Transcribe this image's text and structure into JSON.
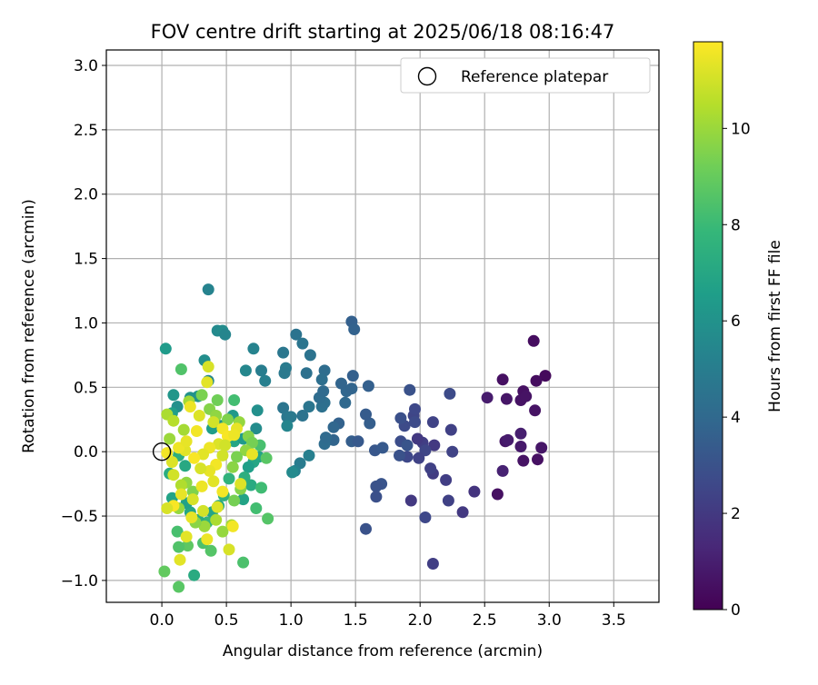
{
  "chart_data": {
    "type": "scatter",
    "title": "FOV centre drift starting at 2025/06/18 08:16:47",
    "xlabel": "Angular distance from reference (arcmin)",
    "ylabel": "Rotation from reference (arcmin)",
    "xlim": [
      -0.43,
      3.85
    ],
    "ylim": [
      -1.17,
      3.12
    ],
    "xticks": [
      0.0,
      0.5,
      1.0,
      1.5,
      2.0,
      2.5,
      3.0,
      3.5
    ],
    "yticks": [
      -1.0,
      -0.5,
      0.0,
      0.5,
      1.0,
      1.5,
      2.0,
      2.5,
      3.0
    ],
    "xtick_labels": [
      "0.0",
      "0.5",
      "1.0",
      "1.5",
      "2.0",
      "2.5",
      "3.0",
      "3.5"
    ],
    "ytick_labels": [
      "−1.0",
      "−0.5",
      "0.0",
      "0.5",
      "1.0",
      "1.5",
      "2.0",
      "2.5",
      "3.0"
    ],
    "grid": true,
    "legend": {
      "placement": "top-right",
      "entries": [
        "Reference platepar"
      ]
    },
    "reference_point": {
      "x": 0.0,
      "y": 0.0,
      "label": "Reference platepar"
    },
    "colorbar": {
      "label": "Hours from first FF file",
      "colormap": "viridis",
      "range": [
        0,
        11.8
      ],
      "ticks": [
        0,
        2,
        4,
        6,
        8,
        10
      ],
      "tick_labels": [
        "0",
        "2",
        "4",
        "6",
        "8",
        "10"
      ]
    },
    "colormap_stops": [
      "#440154",
      "#482878",
      "#3e4989",
      "#31688e",
      "#26828e",
      "#1f9e89",
      "#35b779",
      "#6ece58",
      "#b5de2b",
      "#fde725"
    ],
    "points": [
      {
        "x": 2.88,
        "y": 0.86,
        "t": 0.4
      },
      {
        "x": 2.97,
        "y": 0.59,
        "t": 0.3
      },
      {
        "x": 2.9,
        "y": 0.55,
        "t": 0.4
      },
      {
        "x": 2.64,
        "y": 0.56,
        "t": 0.5
      },
      {
        "x": 2.8,
        "y": 0.47,
        "t": 0.5
      },
      {
        "x": 2.78,
        "y": 0.4,
        "t": 0.6
      },
      {
        "x": 2.82,
        "y": 0.43,
        "t": 0.6
      },
      {
        "x": 2.67,
        "y": 0.41,
        "t": 0.7
      },
      {
        "x": 2.52,
        "y": 0.42,
        "t": 0.9
      },
      {
        "x": 2.89,
        "y": 0.32,
        "t": 0.6
      },
      {
        "x": 2.78,
        "y": 0.14,
        "t": 1.0
      },
      {
        "x": 2.66,
        "y": 0.08,
        "t": 0.7
      },
      {
        "x": 2.68,
        "y": 0.09,
        "t": 0.9
      },
      {
        "x": 2.78,
        "y": 0.04,
        "t": 0.8
      },
      {
        "x": 2.94,
        "y": 0.03,
        "t": 0.7
      },
      {
        "x": 2.8,
        "y": -0.07,
        "t": 0.6
      },
      {
        "x": 2.91,
        "y": -0.06,
        "t": 0.5
      },
      {
        "x": 2.64,
        "y": -0.15,
        "t": 1.1
      },
      {
        "x": 2.6,
        "y": -0.33,
        "t": 0.5
      },
      {
        "x": 2.42,
        "y": -0.31,
        "t": 1.8
      },
      {
        "x": 2.33,
        "y": -0.47,
        "t": 2.0
      },
      {
        "x": 2.22,
        "y": -0.38,
        "t": 2.3
      },
      {
        "x": 2.1,
        "y": -0.87,
        "t": 2.2
      },
      {
        "x": 2.04,
        "y": -0.51,
        "t": 2.6
      },
      {
        "x": 2.2,
        "y": -0.22,
        "t": 2.2
      },
      {
        "x": 2.1,
        "y": -0.17,
        "t": 2.1
      },
      {
        "x": 2.08,
        "y": -0.13,
        "t": 2.3
      },
      {
        "x": 2.25,
        "y": 0.0,
        "t": 2.4
      },
      {
        "x": 2.24,
        "y": 0.17,
        "t": 2.3
      },
      {
        "x": 2.23,
        "y": 0.45,
        "t": 2.7
      },
      {
        "x": 2.1,
        "y": 0.23,
        "t": 2.4
      },
      {
        "x": 2.11,
        "y": 0.05,
        "t": 2.0
      },
      {
        "x": 2.02,
        "y": 0.07,
        "t": 2.2
      },
      {
        "x": 1.98,
        "y": 0.1,
        "t": 2.0
      },
      {
        "x": 2.04,
        "y": 0.01,
        "t": 2.5
      },
      {
        "x": 1.99,
        "y": -0.05,
        "t": 2.4
      },
      {
        "x": 1.93,
        "y": -0.38,
        "t": 2.0
      },
      {
        "x": 1.9,
        "y": -0.04,
        "t": 2.6
      },
      {
        "x": 1.84,
        "y": -0.03,
        "t": 3.0
      },
      {
        "x": 1.85,
        "y": 0.08,
        "t": 2.8
      },
      {
        "x": 1.9,
        "y": 0.05,
        "t": 3.1
      },
      {
        "x": 1.88,
        "y": 0.2,
        "t": 2.7
      },
      {
        "x": 1.85,
        "y": 0.26,
        "t": 2.9
      },
      {
        "x": 1.95,
        "y": 0.28,
        "t": 2.5
      },
      {
        "x": 1.96,
        "y": 0.33,
        "t": 2.6
      },
      {
        "x": 1.92,
        "y": 0.48,
        "t": 3.0
      },
      {
        "x": 1.96,
        "y": 0.23,
        "t": 2.7
      },
      {
        "x": 1.7,
        "y": -0.25,
        "t": 3.1
      },
      {
        "x": 1.66,
        "y": -0.27,
        "t": 3.0
      },
      {
        "x": 1.66,
        "y": -0.35,
        "t": 2.9
      },
      {
        "x": 1.58,
        "y": -0.6,
        "t": 3.0
      },
      {
        "x": 1.65,
        "y": 0.01,
        "t": 3.2
      },
      {
        "x": 1.71,
        "y": 0.03,
        "t": 3.3
      },
      {
        "x": 1.61,
        "y": 0.22,
        "t": 3.5
      },
      {
        "x": 1.58,
        "y": 0.29,
        "t": 3.4
      },
      {
        "x": 1.6,
        "y": 0.51,
        "t": 3.6
      },
      {
        "x": 1.47,
        "y": 1.01,
        "t": 3.6
      },
      {
        "x": 1.49,
        "y": 0.95,
        "t": 3.7
      },
      {
        "x": 1.48,
        "y": 0.59,
        "t": 3.6
      },
      {
        "x": 1.43,
        "y": 0.47,
        "t": 3.9
      },
      {
        "x": 1.39,
        "y": 0.53,
        "t": 3.8
      },
      {
        "x": 1.47,
        "y": 0.49,
        "t": 3.8
      },
      {
        "x": 1.42,
        "y": 0.38,
        "t": 4.0
      },
      {
        "x": 1.37,
        "y": 0.22,
        "t": 3.7
      },
      {
        "x": 1.33,
        "y": 0.19,
        "t": 3.9
      },
      {
        "x": 1.33,
        "y": 0.09,
        "t": 3.8
      },
      {
        "x": 1.47,
        "y": 0.08,
        "t": 3.5
      },
      {
        "x": 1.52,
        "y": 0.08,
        "t": 3.3
      },
      {
        "x": 1.26,
        "y": 0.06,
        "t": 4.2
      },
      {
        "x": 1.27,
        "y": 0.11,
        "t": 4.1
      },
      {
        "x": 1.24,
        "y": 0.35,
        "t": 4.4
      },
      {
        "x": 1.26,
        "y": 0.38,
        "t": 4.3
      },
      {
        "x": 1.22,
        "y": 0.42,
        "t": 4.2
      },
      {
        "x": 1.25,
        "y": 0.47,
        "t": 4.1
      },
      {
        "x": 1.26,
        "y": 0.63,
        "t": 4.2
      },
      {
        "x": 1.24,
        "y": 0.56,
        "t": 4.3
      },
      {
        "x": 1.14,
        "y": 0.35,
        "t": 4.6
      },
      {
        "x": 1.12,
        "y": 0.61,
        "t": 4.4
      },
      {
        "x": 1.15,
        "y": 0.75,
        "t": 4.5
      },
      {
        "x": 1.09,
        "y": 0.84,
        "t": 4.6
      },
      {
        "x": 1.04,
        "y": 0.91,
        "t": 4.5
      },
      {
        "x": 0.94,
        "y": 0.77,
        "t": 4.7
      },
      {
        "x": 0.96,
        "y": 0.65,
        "t": 4.9
      },
      {
        "x": 0.95,
        "y": 0.61,
        "t": 4.8
      },
      {
        "x": 0.94,
        "y": 0.34,
        "t": 4.6
      },
      {
        "x": 0.97,
        "y": 0.27,
        "t": 4.7
      },
      {
        "x": 1.0,
        "y": 0.27,
        "t": 4.8
      },
      {
        "x": 1.09,
        "y": 0.28,
        "t": 4.5
      },
      {
        "x": 0.97,
        "y": 0.2,
        "t": 5.4
      },
      {
        "x": 1.14,
        "y": -0.03,
        "t": 5.1
      },
      {
        "x": 1.07,
        "y": -0.09,
        "t": 4.9
      },
      {
        "x": 1.03,
        "y": -0.15,
        "t": 5.2
      },
      {
        "x": 1.01,
        "y": -0.16,
        "t": 5.6
      },
      {
        "x": 0.8,
        "y": 0.55,
        "t": 5.1
      },
      {
        "x": 0.77,
        "y": 0.63,
        "t": 5.0
      },
      {
        "x": 0.71,
        "y": 0.8,
        "t": 5.3
      },
      {
        "x": 0.65,
        "y": 0.63,
        "t": 5.5
      },
      {
        "x": 0.74,
        "y": 0.32,
        "t": 5.9
      },
      {
        "x": 0.73,
        "y": 0.18,
        "t": 5.7
      },
      {
        "x": 0.36,
        "y": 1.26,
        "t": 5.3
      },
      {
        "x": 0.43,
        "y": 0.94,
        "t": 5.6
      },
      {
        "x": 0.47,
        "y": 0.94,
        "t": 5.7
      },
      {
        "x": 0.49,
        "y": 0.91,
        "t": 5.4
      },
      {
        "x": 0.33,
        "y": 0.71,
        "t": 5.8
      },
      {
        "x": 0.36,
        "y": 0.55,
        "t": 5.5
      },
      {
        "x": 0.28,
        "y": 0.43,
        "t": 6.1
      },
      {
        "x": 0.22,
        "y": 0.42,
        "t": 6.0
      },
      {
        "x": 0.03,
        "y": 0.8,
        "t": 6.4
      },
      {
        "x": 0.09,
        "y": 0.44,
        "t": 6.2
      },
      {
        "x": 0.12,
        "y": 0.35,
        "t": 5.9
      },
      {
        "x": 0.08,
        "y": 0.3,
        "t": 6.6
      },
      {
        "x": 0.55,
        "y": 0.28,
        "t": 6.3
      },
      {
        "x": 0.46,
        "y": 0.2,
        "t": 6.0
      },
      {
        "x": 0.39,
        "y": 0.18,
        "t": 6.5
      },
      {
        "x": 0.52,
        "y": 0.1,
        "t": 6.7
      },
      {
        "x": 0.56,
        "y": 0.08,
        "t": 6.9
      },
      {
        "x": 0.63,
        "y": 0.1,
        "t": 6.4
      },
      {
        "x": 0.75,
        "y": -0.04,
        "t": 6.8
      },
      {
        "x": 0.71,
        "y": -0.08,
        "t": 7.0
      },
      {
        "x": 0.67,
        "y": -0.12,
        "t": 6.6
      },
      {
        "x": 0.64,
        "y": -0.2,
        "t": 7.4
      },
      {
        "x": 0.69,
        "y": -0.26,
        "t": 7.2
      },
      {
        "x": 0.63,
        "y": -0.37,
        "t": 6.8
      },
      {
        "x": 0.52,
        "y": -0.21,
        "t": 7.6
      },
      {
        "x": 0.48,
        "y": -0.34,
        "t": 7.5
      },
      {
        "x": 0.44,
        "y": -0.42,
        "t": 7.1
      },
      {
        "x": 0.39,
        "y": -0.47,
        "t": 6.9
      },
      {
        "x": 0.35,
        "y": -0.55,
        "t": 7.7
      },
      {
        "x": 0.28,
        "y": -0.53,
        "t": 7.3
      },
      {
        "x": 0.22,
        "y": -0.47,
        "t": 7.0
      },
      {
        "x": 0.19,
        "y": -0.4,
        "t": 6.7
      },
      {
        "x": 0.08,
        "y": -0.36,
        "t": 6.8
      },
      {
        "x": 0.06,
        "y": -0.17,
        "t": 7.3
      },
      {
        "x": 0.13,
        "y": -0.03,
        "t": 7.4
      },
      {
        "x": 0.18,
        "y": -0.11,
        "t": 7.1
      },
      {
        "x": 0.25,
        "y": -0.96,
        "t": 7.2
      },
      {
        "x": 0.38,
        "y": -0.77,
        "t": 8.6
      },
      {
        "x": 0.32,
        "y": -0.71,
        "t": 8.4
      },
      {
        "x": 0.2,
        "y": -0.73,
        "t": 8.8
      },
      {
        "x": 0.13,
        "y": -0.74,
        "t": 8.5
      },
      {
        "x": 0.12,
        "y": -0.62,
        "t": 8.3
      },
      {
        "x": 0.02,
        "y": -0.93,
        "t": 8.9
      },
      {
        "x": 0.13,
        "y": -1.05,
        "t": 8.7
      },
      {
        "x": 0.63,
        "y": -0.86,
        "t": 8.4
      },
      {
        "x": 0.73,
        "y": -0.44,
        "t": 8.2
      },
      {
        "x": 0.82,
        "y": -0.52,
        "t": 8.6
      },
      {
        "x": 0.77,
        "y": -0.28,
        "t": 8.1
      },
      {
        "x": 0.81,
        "y": -0.05,
        "t": 8.7
      },
      {
        "x": 0.76,
        "y": 0.05,
        "t": 8.3
      },
      {
        "x": 0.15,
        "y": 0.64,
        "t": 8.5
      },
      {
        "x": 0.56,
        "y": 0.4,
        "t": 8.2
      },
      {
        "x": 0.43,
        "y": 0.4,
        "t": 9.2
      },
      {
        "x": 0.31,
        "y": 0.44,
        "t": 9.4
      },
      {
        "x": 0.21,
        "y": 0.39,
        "t": 10.1
      },
      {
        "x": 0.37,
        "y": 0.33,
        "t": 9.6
      },
      {
        "x": 0.42,
        "y": 0.28,
        "t": 9.8
      },
      {
        "x": 0.51,
        "y": 0.25,
        "t": 9.5
      },
      {
        "x": 0.6,
        "y": 0.23,
        "t": 9.9
      },
      {
        "x": 0.67,
        "y": 0.12,
        "t": 9.6
      },
      {
        "x": 0.7,
        "y": 0.07,
        "t": 9.3
      },
      {
        "x": 0.65,
        "y": 0.01,
        "t": 9.8
      },
      {
        "x": 0.58,
        "y": -0.04,
        "t": 9.4
      },
      {
        "x": 0.55,
        "y": -0.12,
        "t": 9.7
      },
      {
        "x": 0.61,
        "y": -0.29,
        "t": 9.6
      },
      {
        "x": 0.56,
        "y": -0.38,
        "t": 9.3
      },
      {
        "x": 0.54,
        "y": -0.57,
        "t": 10.2
      },
      {
        "x": 0.47,
        "y": -0.62,
        "t": 9.9
      },
      {
        "x": 0.42,
        "y": -0.53,
        "t": 10.3
      },
      {
        "x": 0.33,
        "y": -0.58,
        "t": 10.0
      },
      {
        "x": 0.26,
        "y": -0.55,
        "t": 9.7
      },
      {
        "x": 0.24,
        "y": -0.31,
        "t": 9.5
      },
      {
        "x": 0.19,
        "y": -0.24,
        "t": 9.8
      },
      {
        "x": 0.15,
        "y": -0.26,
        "t": 10.4
      },
      {
        "x": 0.13,
        "y": -0.44,
        "t": 9.9
      },
      {
        "x": 0.04,
        "y": 0.29,
        "t": 10.3
      },
      {
        "x": 0.06,
        "y": 0.1,
        "t": 10.0
      },
      {
        "x": 0.09,
        "y": 0.24,
        "t": 10.5
      },
      {
        "x": 0.17,
        "y": 0.17,
        "t": 10.2
      },
      {
        "x": 0.36,
        "y": 0.66,
        "t": 11.1
      },
      {
        "x": 0.35,
        "y": 0.54,
        "t": 11.3
      },
      {
        "x": 0.22,
        "y": 0.35,
        "t": 11.5
      },
      {
        "x": 0.29,
        "y": 0.28,
        "t": 11.2
      },
      {
        "x": 0.4,
        "y": 0.23,
        "t": 11.0
      },
      {
        "x": 0.47,
        "y": 0.18,
        "t": 11.6
      },
      {
        "x": 0.58,
        "y": 0.18,
        "t": 11.4
      },
      {
        "x": 0.51,
        "y": 0.12,
        "t": 11.7
      },
      {
        "x": 0.44,
        "y": 0.06,
        "t": 11.2
      },
      {
        "x": 0.37,
        "y": 0.03,
        "t": 11.5
      },
      {
        "x": 0.32,
        "y": -0.02,
        "t": 11.3
      },
      {
        "x": 0.47,
        "y": -0.03,
        "t": 11.0
      },
      {
        "x": 0.42,
        "y": -0.1,
        "t": 11.6
      },
      {
        "x": 0.37,
        "y": -0.15,
        "t": 11.4
      },
      {
        "x": 0.3,
        "y": -0.13,
        "t": 11.1
      },
      {
        "x": 0.25,
        "y": -0.05,
        "t": 11.7
      },
      {
        "x": 0.18,
        "y": 0.01,
        "t": 11.3
      },
      {
        "x": 0.13,
        "y": 0.03,
        "t": 11.5
      },
      {
        "x": 0.08,
        "y": -0.08,
        "t": 11.2
      },
      {
        "x": 0.04,
        "y": -0.01,
        "t": 11.6
      },
      {
        "x": 0.09,
        "y": -0.18,
        "t": 11.0
      },
      {
        "x": 0.15,
        "y": -0.33,
        "t": 11.4
      },
      {
        "x": 0.24,
        "y": -0.37,
        "t": 11.1
      },
      {
        "x": 0.31,
        "y": -0.27,
        "t": 11.5
      },
      {
        "x": 0.4,
        "y": -0.23,
        "t": 11.3
      },
      {
        "x": 0.47,
        "y": -0.31,
        "t": 11.6
      },
      {
        "x": 0.43,
        "y": -0.43,
        "t": 11.2
      },
      {
        "x": 0.32,
        "y": -0.46,
        "t": 11.0
      },
      {
        "x": 0.23,
        "y": -0.51,
        "t": 11.4
      },
      {
        "x": 0.09,
        "y": -0.42,
        "t": 11.7
      },
      {
        "x": 0.19,
        "y": -0.66,
        "t": 11.3
      },
      {
        "x": 0.35,
        "y": -0.68,
        "t": 11.5
      },
      {
        "x": 0.52,
        "y": -0.76,
        "t": 11.1
      },
      {
        "x": 0.55,
        "y": -0.58,
        "t": 11.6
      },
      {
        "x": 0.61,
        "y": -0.25,
        "t": 11.2
      },
      {
        "x": 0.7,
        "y": -0.02,
        "t": 11.4
      },
      {
        "x": 0.49,
        "y": 0.05,
        "t": 11.0
      },
      {
        "x": 0.56,
        "y": 0.13,
        "t": 11.5
      },
      {
        "x": 0.14,
        "y": -0.84,
        "t": 11.3
      },
      {
        "x": 0.04,
        "y": -0.44,
        "t": 11.1
      },
      {
        "x": 0.27,
        "y": 0.16,
        "t": 11.6
      },
      {
        "x": 0.19,
        "y": 0.08,
        "t": 11.4
      }
    ]
  }
}
